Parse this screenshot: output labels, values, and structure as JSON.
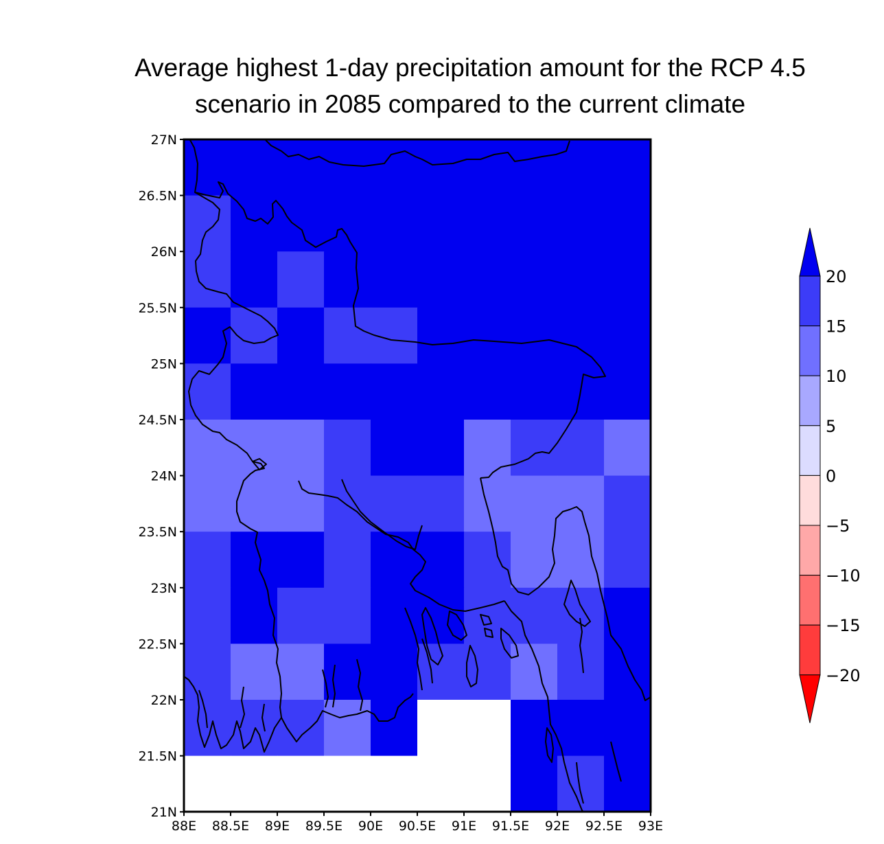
{
  "title": {
    "line1": "Average highest 1-day precipitation amount for the RCP 4.5",
    "line2": "scenario in 2085 compared to the current climate"
  },
  "axes": {
    "x_ticks": [
      "88E",
      "88.5E",
      "89E",
      "89.5E",
      "90E",
      "90.5E",
      "91E",
      "91.5E",
      "92E",
      "92.5E",
      "93E"
    ],
    "y_ticks": [
      "27N",
      "26.5N",
      "26N",
      "25.5N",
      "25N",
      "24.5N",
      "24N",
      "23.5N",
      "23N",
      "22.5N",
      "22N",
      "21.5N",
      "21N"
    ]
  },
  "colors": {
    "c20": "#0000f0",
    "c15": "#3c3cf8",
    "c10": "#7070ff",
    "c5": "#a8a8ff",
    "c0": "#dcdcff",
    "cm5": "#ffdcdc",
    "cm10": "#ffa8a8",
    "cm15": "#ff7070",
    "cm20": "#ff3c3c",
    "cmin": "#ff0000",
    "missing": "#ffffff"
  },
  "legend": {
    "labels": [
      "20",
      "15",
      "10",
      "5",
      "0",
      "−5",
      "−10",
      "−15",
      "−20"
    ],
    "colors": [
      "#3c3cf8",
      "#7070ff",
      "#a8a8ff",
      "#dcdcff",
      "#ffdcdc",
      "#ffa8a8",
      "#ff7070",
      "#ff3c3c"
    ],
    "top_arrow_color": "#0000f0",
    "bottom_arrow_color": "#ff0000"
  },
  "grid_legend": {
    "A": "> 20",
    "B": "15 to 20",
    "C": "10 to 15",
    "W": "missing"
  },
  "map_data": {
    "lon_edges": [
      88.0,
      88.5,
      89.0,
      89.5,
      90.0,
      90.5,
      91.0,
      91.5,
      92.0,
      92.5,
      93.0
    ],
    "lat_edges_top_to_bottom": [
      27.0,
      26.5,
      26.0,
      25.5,
      25.0,
      24.5,
      24.0,
      23.5,
      23.0,
      22.5,
      22.0,
      21.5,
      21.0
    ],
    "grid_rows": [
      "AAAAAAAAAA",
      "BAAAAAAAAA",
      "BABAAAAAAA",
      "ABABBAAAAA",
      "BAAAAAAAAA",
      "CCCBAACBBC",
      "CCCBBBCCCB",
      "BAABAABCCB",
      "BABBAABBBA",
      "BCCAABBCBA",
      "BBBCAWWAAA",
      "WWWWWWWABA"
    ]
  }
}
